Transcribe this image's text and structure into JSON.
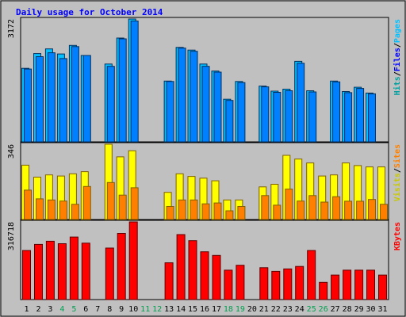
{
  "title": "Daily usage for October 2014",
  "colors": {
    "background": "#C0C0C0",
    "title": "#0000FF",
    "hits": "#00C0FF",
    "files": "#0080FF",
    "pages": "#00A0A0",
    "visits": "#FFFF00",
    "sites": "#FF8000",
    "kbytes": "#FF0000",
    "weekend_label": "#00A050",
    "weekday_label": "#000000"
  },
  "chart_data": [
    {
      "type": "bar",
      "panel": "hits",
      "ymax_label": "3172",
      "legend": [
        {
          "text": "Hits",
          "color": "#00A0A0"
        },
        {
          "text": "Files",
          "color": "#0000FF"
        },
        {
          "text": "Pages",
          "color": "#00C0FF"
        }
      ],
      "ymax": 3172,
      "days": [
        1,
        2,
        3,
        4,
        5,
        6,
        7,
        8,
        9,
        10,
        11,
        12,
        13,
        14,
        15,
        16,
        17,
        18,
        19,
        20,
        21,
        22,
        23,
        24,
        25,
        26,
        27,
        28,
        29,
        30,
        31
      ],
      "weekends": [
        4,
        5,
        11,
        12,
        18,
        19,
        25,
        26
      ],
      "series": [
        {
          "values": [
            1900,
            2280,
            2400,
            2270,
            2490,
            2230,
            null,
            2010,
            2680,
            3172,
            null,
            null,
            1570,
            2440,
            2370,
            2010,
            1830,
            1100,
            1560,
            null,
            1440,
            1310,
            1360,
            2080,
            1320,
            null,
            1570,
            1300,
            1410,
            1260,
            null
          ]
        },
        {
          "values": [
            1880,
            2200,
            2300,
            2150,
            2460,
            2230,
            null,
            1950,
            2660,
            3120,
            null,
            null,
            1560,
            2420,
            2340,
            1950,
            1800,
            1070,
            1530,
            null,
            1420,
            1280,
            1320,
            2030,
            1290,
            null,
            1550,
            1270,
            1380,
            1240,
            null
          ]
        }
      ]
    },
    {
      "type": "bar",
      "panel": "visits",
      "ymax_label": "346",
      "legend": [
        {
          "text": "Visits",
          "color": "#C8C800"
        },
        {
          "text": "Sites",
          "color": "#FF8000"
        }
      ],
      "ymax": 346,
      "series": [
        {
          "values": [
            250,
            195,
            205,
            200,
            210,
            220,
            null,
            346,
            288,
            316,
            null,
            null,
            125,
            210,
            198,
            190,
            178,
            90,
            90,
            null,
            150,
            162,
            295,
            278,
            260,
            200,
            205,
            260,
            248,
            242,
            242
          ]
        },
        {
          "values": [
            135,
            95,
            90,
            85,
            70,
            152,
            null,
            170,
            112,
            146,
            null,
            null,
            60,
            90,
            90,
            72,
            76,
            40,
            60,
            null,
            110,
            66,
            140,
            85,
            110,
            80,
            105,
            84,
            84,
            92,
            70
          ]
        }
      ]
    },
    {
      "type": "bar",
      "panel": "kbytes",
      "ymax_label": "316718",
      "legend": [
        {
          "text": "KBytes",
          "color": "#FF0000"
        }
      ],
      "ymax": 316718,
      "series": [
        {
          "values": [
            200000,
            225000,
            238000,
            228000,
            255000,
            230000,
            null,
            210000,
            270000,
            316718,
            null,
            null,
            150000,
            265000,
            240000,
            195000,
            180000,
            120000,
            140000,
            null,
            130000,
            115000,
            125000,
            135000,
            200000,
            70000,
            100000,
            120000,
            120000,
            120000,
            100000
          ]
        }
      ]
    }
  ]
}
